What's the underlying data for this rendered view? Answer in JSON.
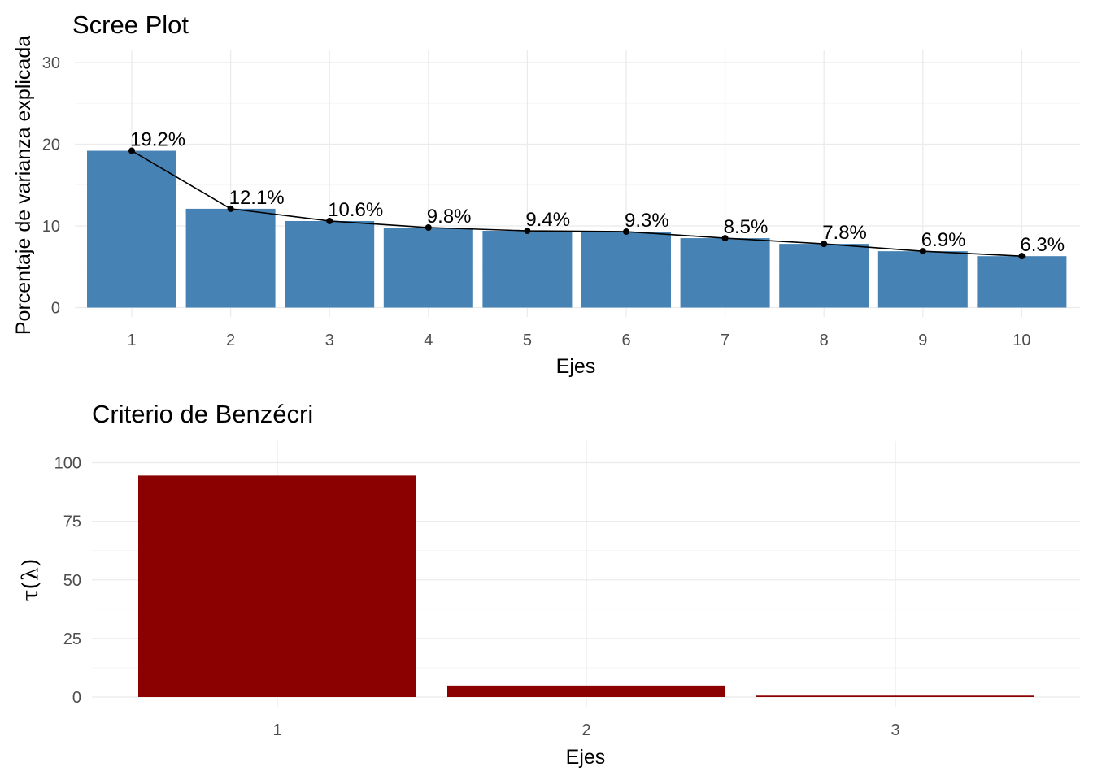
{
  "chart_data": [
    {
      "type": "bar",
      "title": "Scree Plot",
      "xlabel": "Ejes",
      "ylabel": "Porcentaje de varianza explicada",
      "categories": [
        "1",
        "2",
        "3",
        "4",
        "5",
        "6",
        "7",
        "8",
        "9",
        "10"
      ],
      "values": [
        19.2,
        12.1,
        10.6,
        9.8,
        9.4,
        9.3,
        8.5,
        7.8,
        6.9,
        6.3
      ],
      "data_labels": [
        "19.2%",
        "12.1%",
        "10.6%",
        "9.8%",
        "9.4%",
        "9.3%",
        "8.5%",
        "7.8%",
        "6.9%",
        "6.3%"
      ],
      "yticks": [
        0,
        10,
        20,
        30
      ],
      "ylim": [
        0,
        30
      ],
      "overlay_line": true,
      "grid": true,
      "bar_color": "#4682b4",
      "line_color": "#000000"
    },
    {
      "type": "bar",
      "title": "Criterio de Benzécri",
      "xlabel": "Ejes",
      "ylabel": "τ(λ)",
      "categories": [
        "1",
        "2",
        "3"
      ],
      "values": [
        94.5,
        4.9,
        0.6
      ],
      "yticks": [
        0,
        25,
        50,
        75,
        100
      ],
      "ylim": [
        0,
        100
      ],
      "grid": true,
      "bar_color": "#8b0000"
    }
  ]
}
